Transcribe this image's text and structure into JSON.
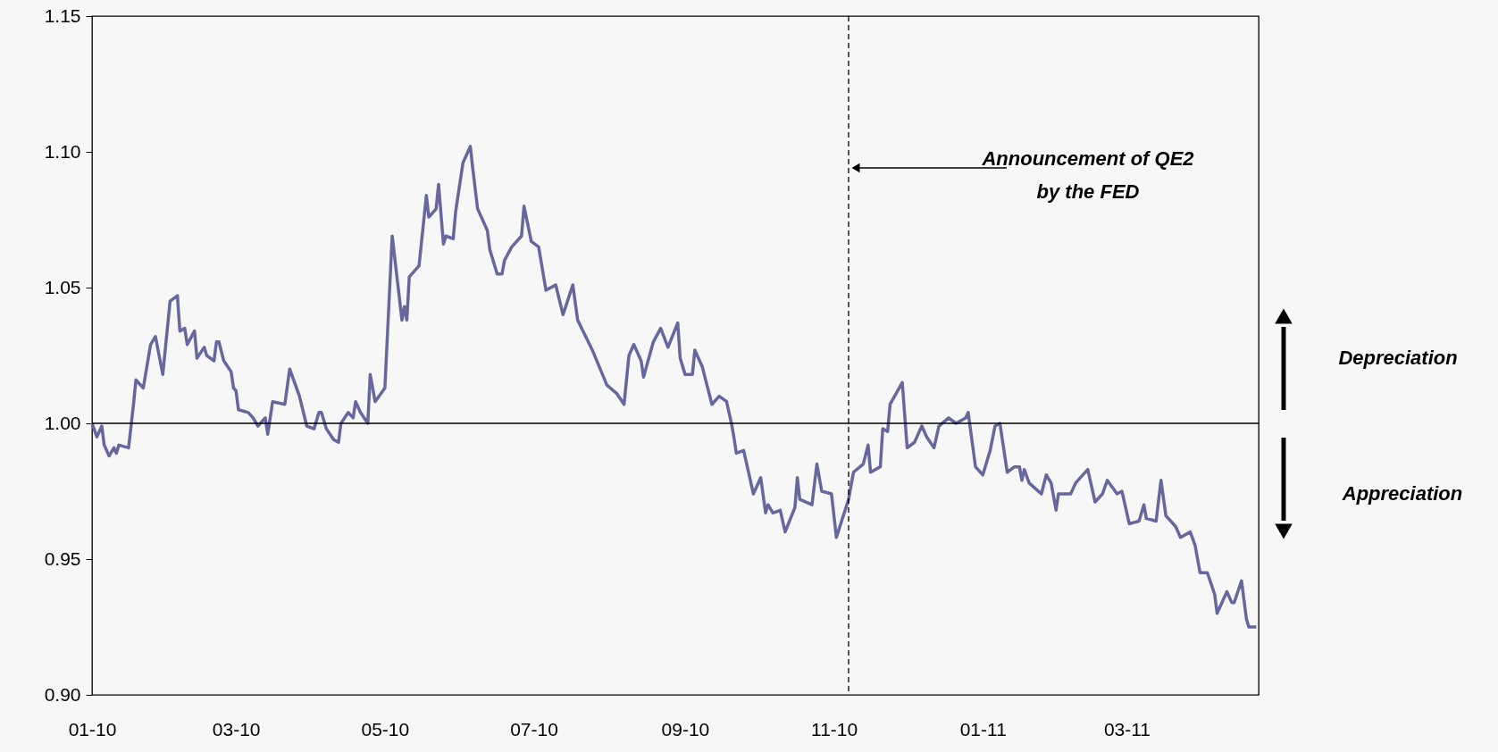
{
  "chart_data": {
    "type": "line",
    "x": [
      "2010-01-01",
      "2010-01-03",
      "2010-01-05",
      "2010-01-06",
      "2010-01-08",
      "2010-01-10",
      "2010-01-11",
      "2010-01-12",
      "2010-01-16",
      "2010-01-17",
      "2010-01-18",
      "2010-01-19",
      "2010-01-22",
      "2010-01-25",
      "2010-01-27",
      "2010-01-30",
      "2010-02-02",
      "2010-02-05",
      "2010-02-06",
      "2010-02-08",
      "2010-02-09",
      "2010-02-12",
      "2010-02-13",
      "2010-02-16",
      "2010-02-17",
      "2010-02-20",
      "2010-02-21",
      "2010-02-22",
      "2010-02-24",
      "2010-02-27",
      "2010-02-28",
      "2010-03-01",
      "2010-03-02",
      "2010-03-06",
      "2010-03-08",
      "2010-03-10",
      "2010-03-13",
      "2010-03-14",
      "2010-03-16",
      "2010-03-21",
      "2010-03-23",
      "2010-03-27",
      "2010-03-30",
      "2010-04-02",
      "2010-04-04",
      "2010-04-05",
      "2010-04-07",
      "2010-04-10",
      "2010-04-12",
      "2010-04-13",
      "2010-04-16",
      "2010-04-18",
      "2010-04-19",
      "2010-04-21",
      "2010-04-24",
      "2010-04-25",
      "2010-04-27",
      "2010-05-01",
      "2010-05-04",
      "2010-05-08",
      "2010-05-09",
      "2010-05-10",
      "2010-05-11",
      "2010-05-15",
      "2010-05-18",
      "2010-05-19",
      "2010-05-22",
      "2010-05-23",
      "2010-05-25",
      "2010-05-26",
      "2010-05-29",
      "2010-05-30",
      "2010-06-02",
      "2010-06-05",
      "2010-06-06",
      "2010-06-08",
      "2010-06-12",
      "2010-06-13",
      "2010-06-16",
      "2010-06-18",
      "2010-06-19",
      "2010-06-22",
      "2010-06-26",
      "2010-06-27",
      "2010-06-30",
      "2010-07-03",
      "2010-07-06",
      "2010-07-10",
      "2010-07-13",
      "2010-07-17",
      "2010-07-19",
      "2010-07-25",
      "2010-07-31",
      "2010-08-04",
      "2010-08-07",
      "2010-08-09",
      "2010-08-11",
      "2010-08-14",
      "2010-08-15",
      "2010-08-19",
      "2010-08-22",
      "2010-08-25",
      "2010-08-29",
      "2010-08-30",
      "2010-09-01",
      "2010-09-04",
      "2010-09-05",
      "2010-09-08",
      "2010-09-12",
      "2010-09-15",
      "2010-09-18",
      "2010-09-20",
      "2010-09-21",
      "2010-09-22",
      "2010-09-25",
      "2010-09-27",
      "2010-09-29",
      "2010-10-02",
      "2010-10-04",
      "2010-10-05",
      "2010-10-07",
      "2010-10-10",
      "2010-10-12",
      "2010-10-16",
      "2010-10-17",
      "2010-10-18",
      "2010-10-23",
      "2010-10-25",
      "2010-10-27",
      "2010-10-31",
      "2010-11-02",
      "2010-11-07",
      "2010-11-09",
      "2010-11-13",
      "2010-11-15",
      "2010-11-16",
      "2010-11-20",
      "2010-11-21",
      "2010-11-23",
      "2010-11-24",
      "2010-11-29",
      "2010-12-01",
      "2010-12-04",
      "2010-12-06",
      "2010-12-07",
      "2010-12-09",
      "2010-12-12",
      "2010-12-14",
      "2010-12-18",
      "2010-12-21",
      "2010-12-25",
      "2010-12-26",
      "2010-12-29",
      "2011-01-01",
      "2011-01-04",
      "2011-01-06",
      "2011-01-08",
      "2011-01-11",
      "2011-01-14",
      "2011-01-16",
      "2011-01-17",
      "2011-01-18",
      "2011-01-20",
      "2011-01-25",
      "2011-01-27",
      "2011-01-29",
      "2011-01-31",
      "2011-02-01",
      "2011-02-06",
      "2011-02-08",
      "2011-02-13",
      "2011-02-16",
      "2011-02-19",
      "2011-02-21",
      "2011-02-25",
      "2011-02-27",
      "2011-03-02",
      "2011-03-06",
      "2011-03-08",
      "2011-03-09",
      "2011-03-13",
      "2011-03-15",
      "2011-03-17",
      "2011-03-21",
      "2011-03-23",
      "2011-03-27",
      "2011-03-29",
      "2011-03-31",
      "2011-04-03",
      "2011-04-06",
      "2011-04-07",
      "2011-04-11",
      "2011-04-13",
      "2011-04-14",
      "2011-04-17",
      "2011-04-19",
      "2011-04-20",
      "2011-04-23"
    ],
    "series": [
      {
        "color": "#67679e",
        "values": [
          1.0,
          0.995,
          0.999,
          0.992,
          0.988,
          0.991,
          0.989,
          0.992,
          0.991,
          0.999,
          1.007,
          1.016,
          1.013,
          1.029,
          1.032,
          1.018,
          1.045,
          1.047,
          1.034,
          1.035,
          1.029,
          1.034,
          1.024,
          1.028,
          1.025,
          1.023,
          1.03,
          1.03,
          1.023,
          1.019,
          1.013,
          1.012,
          1.005,
          1.004,
          1.002,
          0.999,
          1.002,
          0.996,
          1.008,
          1.007,
          1.02,
          1.01,
          0.999,
          0.998,
          1.004,
          1.004,
          0.998,
          0.994,
          0.993,
          1.0,
          1.004,
          1.002,
          1.008,
          1.004,
          1.0,
          1.018,
          1.008,
          1.013,
          1.069,
          1.038,
          1.043,
          1.038,
          1.054,
          1.058,
          1.084,
          1.076,
          1.079,
          1.088,
          1.066,
          1.069,
          1.068,
          1.078,
          1.096,
          1.102,
          1.094,
          1.079,
          1.071,
          1.064,
          1.055,
          1.055,
          1.06,
          1.065,
          1.069,
          1.08,
          1.067,
          1.065,
          1.049,
          1.051,
          1.04,
          1.051,
          1.038,
          1.027,
          1.014,
          1.011,
          1.007,
          1.025,
          1.029,
          1.023,
          1.017,
          1.03,
          1.035,
          1.028,
          1.037,
          1.024,
          1.018,
          1.018,
          1.027,
          1.021,
          1.007,
          1.01,
          1.008,
          1.0,
          0.995,
          0.989,
          0.99,
          0.982,
          0.974,
          0.98,
          0.967,
          0.97,
          0.967,
          0.968,
          0.96,
          0.969,
          0.98,
          0.972,
          0.97,
          0.985,
          0.975,
          0.974,
          0.958,
          0.972,
          0.982,
          0.985,
          0.992,
          0.982,
          0.984,
          0.998,
          0.997,
          1.007,
          1.015,
          0.991,
          0.993,
          0.997,
          0.999,
          0.995,
          0.991,
          0.999,
          1.002,
          1.0,
          1.002,
          1.004,
          0.984,
          0.981,
          0.99,
          0.999,
          1.0,
          0.982,
          0.984,
          0.984,
          0.979,
          0.983,
          0.978,
          0.974,
          0.981,
          0.978,
          0.968,
          0.974,
          0.974,
          0.978,
          0.983,
          0.971,
          0.974,
          0.979,
          0.974,
          0.975,
          0.963,
          0.964,
          0.97,
          0.965,
          0.964,
          0.979,
          0.966,
          0.962,
          0.958,
          0.96,
          0.955,
          0.945,
          0.945,
          0.937,
          0.93,
          0.938,
          0.934,
          0.934,
          0.942,
          0.928,
          0.925,
          0.925
        ]
      }
    ],
    "xlim": [
      "2010-01-01",
      "2011-04-24"
    ],
    "xticks": [
      {
        "value": "2010-01-01",
        "label": "01-10"
      },
      {
        "value": "2010-03-01",
        "label": "03-10"
      },
      {
        "value": "2010-05-01",
        "label": "05-10"
      },
      {
        "value": "2010-07-01",
        "label": "07-10"
      },
      {
        "value": "2010-09-01",
        "label": "09-10"
      },
      {
        "value": "2010-11-01",
        "label": "11-10"
      },
      {
        "value": "2011-01-01",
        "label": "01-11"
      },
      {
        "value": "2011-03-01",
        "label": "03-11"
      }
    ],
    "ylim": [
      0.9,
      1.15
    ],
    "yticks": [
      {
        "value": 0.9,
        "label": "0.90"
      },
      {
        "value": 0.95,
        "label": "0.95"
      },
      {
        "value": 1.0,
        "label": "1.00"
      },
      {
        "value": 1.05,
        "label": "1.05"
      },
      {
        "value": 1.1,
        "label": "1.10"
      },
      {
        "value": 1.15,
        "label": "1.15"
      }
    ],
    "ref_lines": [
      {
        "axis": "y",
        "value": 1.0,
        "color": "#000000",
        "line_style": "solid"
      },
      {
        "axis": "x",
        "value": "2010-11-07",
        "color": "#000000",
        "line_style": "dashed"
      }
    ],
    "annotations": [
      "Announcement of QE2\nby the FED",
      "Depreciation",
      "Appreciation"
    ],
    "grid": false,
    "marker": "none"
  }
}
